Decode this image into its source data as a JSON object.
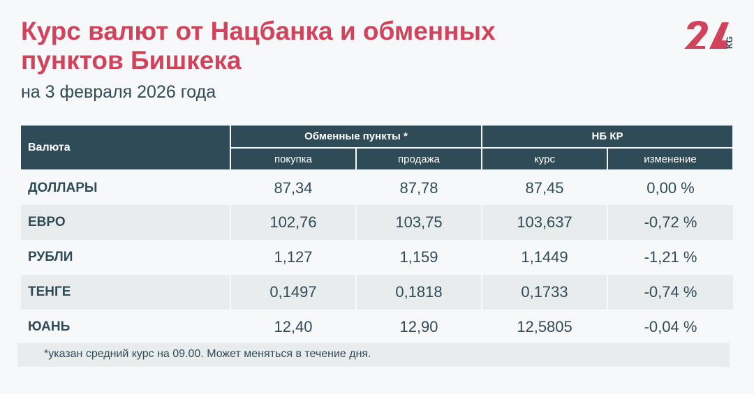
{
  "title": "Курс валют от Нацбанка и обменных пунктов Бишкека",
  "subtitle": "на 3 февраля 2026 года",
  "logo": {
    "text": "24",
    "suffix": "KG",
    "color": "#d0435a",
    "suffix_color": "#2f4b57"
  },
  "table": {
    "col_currency": "Валюта",
    "group_exchange": "Обменные пункты *",
    "group_nb": "НБ КР",
    "sub": [
      "покупка",
      "продажа",
      "курс",
      "изменение"
    ],
    "rows": [
      {
        "name": "ДОЛЛАРЫ",
        "buy": "87,34",
        "sell": "87,78",
        "rate": "87,45",
        "change": "0,00 %"
      },
      {
        "name": "ЕВРО",
        "buy": "102,76",
        "sell": "103,75",
        "rate": "103,637",
        "change": "-0,72 %"
      },
      {
        "name": "РУБЛИ",
        "buy": "1,127",
        "sell": "1,159",
        "rate": "1,1449",
        "change": "-1,21 %"
      },
      {
        "name": "ТЕНГЕ",
        "buy": "0,1497",
        "sell": "0,1818",
        "rate": "0,1733",
        "change": "-0,74 %"
      },
      {
        "name": "ЮАНЬ",
        "buy": "12,40",
        "sell": "12,90",
        "rate": "12,5805",
        "change": "-0,04 %"
      }
    ]
  },
  "footnote": "*указан средний курс на 09.00. Может меняться в течение дня.",
  "colors": {
    "header": "#2f4b57",
    "accent": "#d0435a",
    "row_alt": "#e9eced",
    "background": "#f7f8f9"
  }
}
